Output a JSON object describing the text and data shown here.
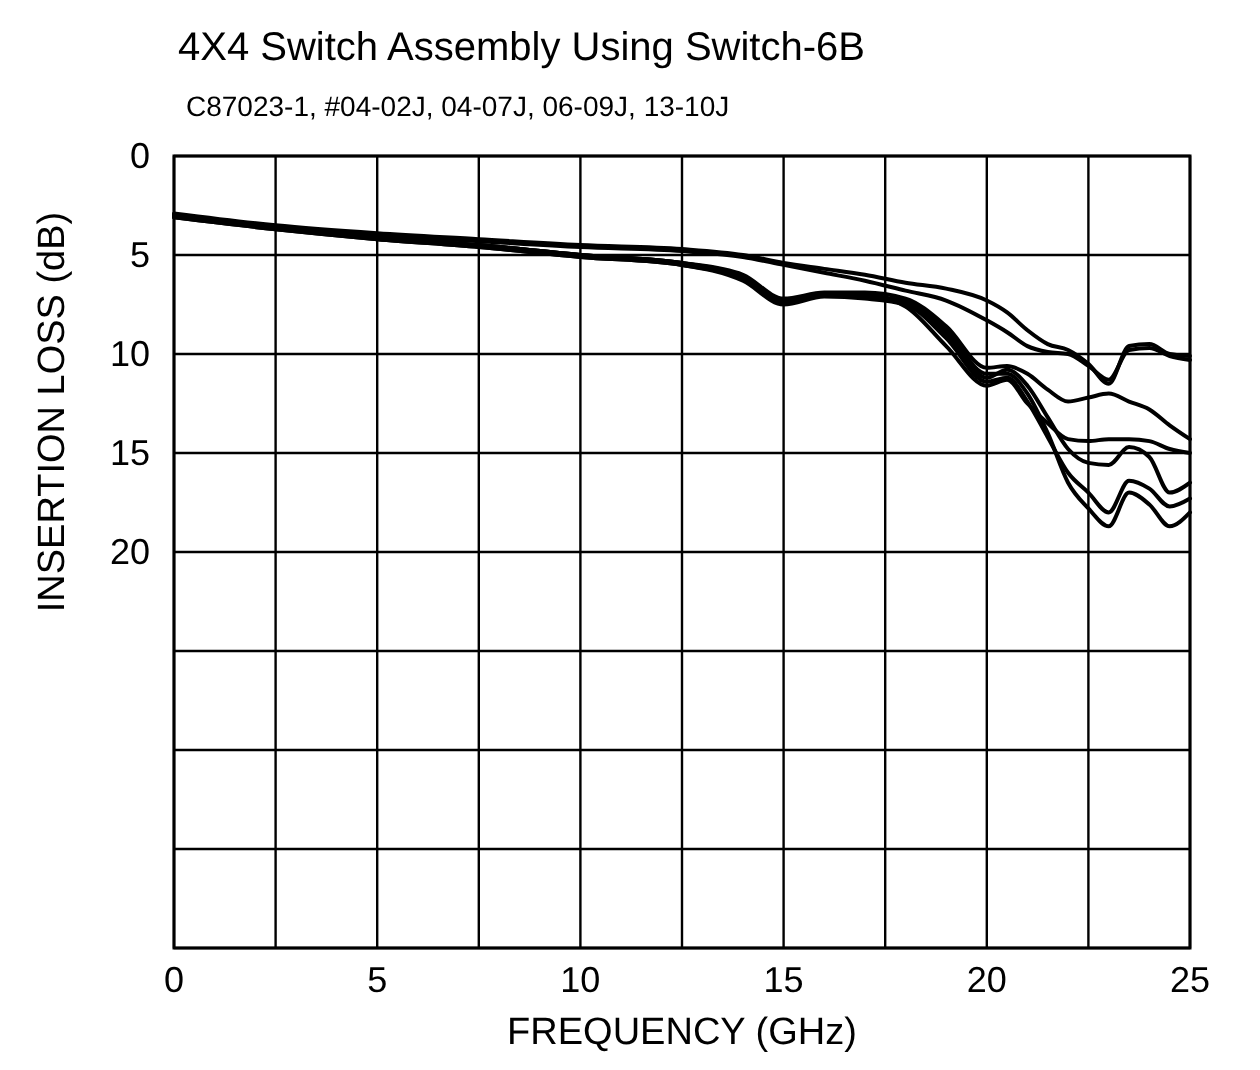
{
  "chart_data": {
    "type": "line",
    "title": "4X4 Switch Assembly Using Switch-6B",
    "subtitle": "C87023-1, #04-02J, 04-07J, 06-09J, 13-10J",
    "xlabel": "FREQUENCY  (GHz)",
    "ylabel": "INSERTION LOSS  (dB)",
    "x": [
      0,
      2.5,
      5,
      7.5,
      10,
      12.5,
      14,
      15,
      16,
      17,
      18,
      19,
      20,
      20.5,
      21,
      21.5,
      22,
      22.5,
      23,
      23.5,
      24,
      24.5,
      25
    ],
    "series": [
      {
        "color": "#000000",
        "values": [
          2.9,
          3.5,
          3.9,
          4.2,
          4.5,
          4.7,
          5.0,
          5.4,
          5.7,
          6.0,
          6.4,
          6.7,
          7.3,
          7.9,
          8.8,
          9.5,
          9.8,
          10.5,
          11.5,
          9.6,
          9.5,
          10.0,
          10.1
        ]
      },
      {
        "color": "#000000",
        "values": [
          3.0,
          3.6,
          4.0,
          4.3,
          4.6,
          4.8,
          5.1,
          5.5,
          5.9,
          6.3,
          6.8,
          7.3,
          8.3,
          8.9,
          9.6,
          9.9,
          10.0,
          10.6,
          11.3,
          9.8,
          9.7,
          10.1,
          10.3
        ]
      },
      {
        "color": "#000000",
        "values": [
          3.0,
          3.6,
          4.1,
          4.5,
          5.0,
          5.4,
          6.2,
          7.4,
          7.0,
          7.1,
          7.3,
          8.8,
          11.0,
          11.0,
          12.0,
          14.0,
          16.5,
          17.8,
          18.7,
          17.0,
          17.6,
          18.7,
          18.0
        ]
      },
      {
        "color": "#000000",
        "values": [
          3.1,
          3.7,
          4.2,
          4.6,
          5.1,
          5.5,
          6.3,
          7.5,
          7.1,
          7.2,
          7.5,
          9.2,
          11.4,
          11.2,
          12.4,
          14.2,
          16.0,
          17.0,
          18.0,
          16.4,
          16.8,
          17.7,
          17.3
        ]
      },
      {
        "color": "#000000",
        "values": [
          3.0,
          3.6,
          4.1,
          4.5,
          5.0,
          5.4,
          6.1,
          7.3,
          7.0,
          7.1,
          7.4,
          9.0,
          11.2,
          10.8,
          11.6,
          13.2,
          14.8,
          15.5,
          15.6,
          14.7,
          15.2,
          17.0,
          16.5
        ]
      },
      {
        "color": "#000000",
        "values": [
          3.0,
          3.6,
          4.1,
          4.5,
          5.0,
          5.4,
          6.0,
          7.2,
          6.9,
          6.9,
          7.2,
          8.6,
          10.7,
          10.6,
          11.0,
          11.8,
          12.4,
          12.2,
          12.0,
          12.4,
          12.8,
          13.6,
          14.3
        ]
      },
      {
        "color": "#000000",
        "values": [
          3.1,
          3.7,
          4.2,
          4.6,
          5.1,
          5.5,
          6.2,
          7.4,
          7.0,
          7.0,
          7.6,
          9.6,
          11.6,
          11.3,
          12.5,
          13.5,
          14.3,
          14.4,
          14.3,
          14.3,
          14.4,
          14.8,
          15.0
        ]
      }
    ],
    "xlim": [
      0,
      25
    ],
    "xticks": [
      0,
      {
        "value": 2.5,
        "label": null
      },
      5,
      {
        "value": 7.5,
        "label": null
      },
      10,
      {
        "value": 12.5,
        "label": null
      },
      15,
      {
        "value": 17.5,
        "label": null
      },
      20,
      {
        "value": 22.5,
        "label": null
      },
      25
    ],
    "ylim": [
      40,
      0
    ],
    "yticks": [
      0,
      5,
      10,
      15,
      20,
      {
        "value": 25,
        "label": null
      },
      {
        "value": 30,
        "label": null
      },
      {
        "value": 35,
        "label": null
      },
      {
        "value": 40,
        "label": null
      }
    ],
    "grid": true
  }
}
